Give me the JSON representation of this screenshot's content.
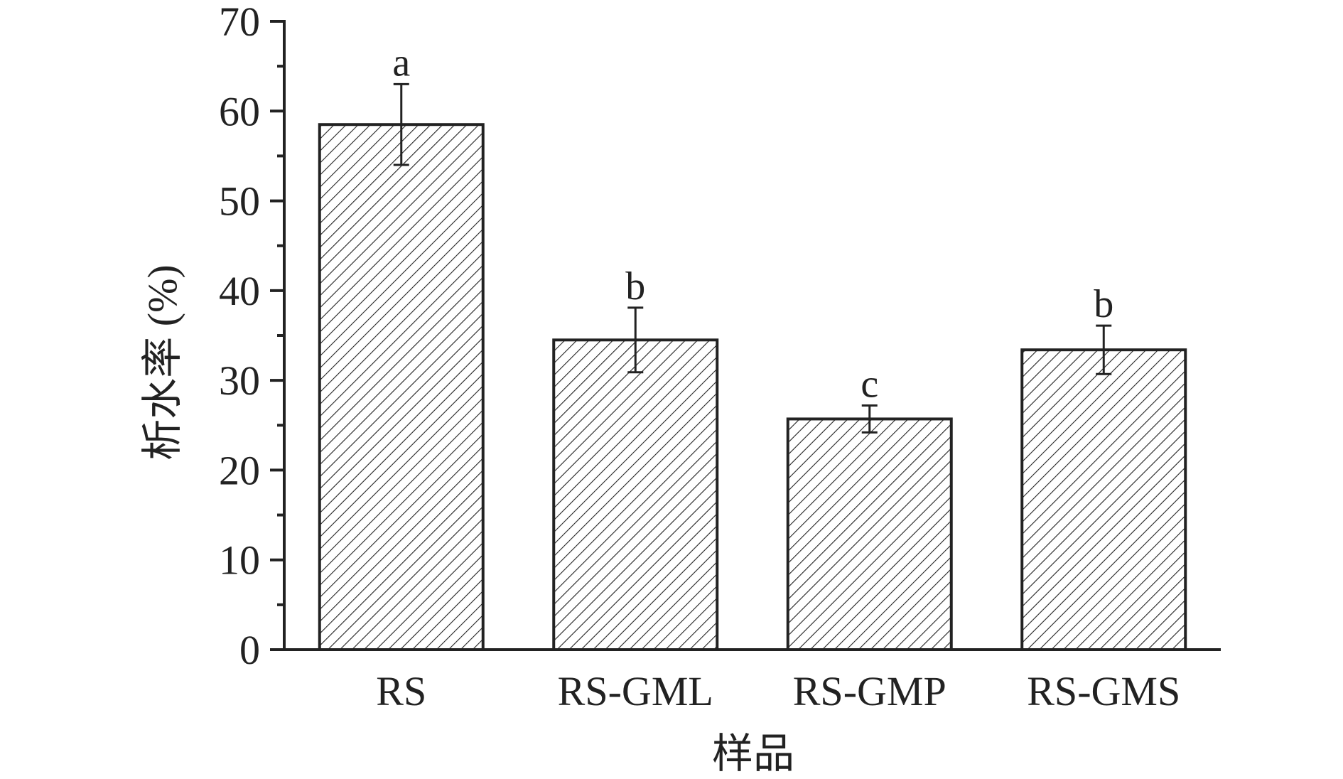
{
  "chart_data": {
    "type": "bar",
    "categories": [
      "RS",
      "RS-GML",
      "RS-GMP",
      "RS-GMS"
    ],
    "values": [
      58.5,
      34.5,
      25.7,
      33.4
    ],
    "errors": [
      4.5,
      3.6,
      1.5,
      2.7
    ],
    "significance_labels": [
      "a",
      "b",
      "c",
      "b"
    ],
    "title": "",
    "xlabel": "样品",
    "ylabel": "析水率 (%)",
    "ylim": [
      0,
      70
    ],
    "yticks": [
      0,
      10,
      20,
      30,
      40,
      50,
      60,
      70
    ],
    "grid": false,
    "bar_fill": "hatched",
    "colors": {
      "axis": "#222222",
      "bar_edge": "#222222",
      "hatch": "#222222",
      "background": "#ffffff"
    }
  }
}
